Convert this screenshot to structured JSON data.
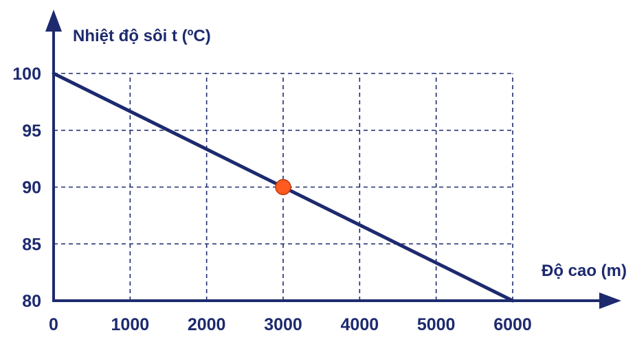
{
  "chart_data": {
    "type": "line",
    "xlabel": "Độ cao (m)",
    "ylabel": "Nhiệt độ sôi t (ºC)",
    "x_ticks": [
      0,
      1000,
      2000,
      3000,
      4000,
      5000,
      6000
    ],
    "y_ticks": [
      80,
      85,
      90,
      95,
      100
    ],
    "xlim": [
      0,
      6000
    ],
    "ylim": [
      80,
      100
    ],
    "grid": true,
    "series": [
      {
        "x": [
          0,
          6000
        ],
        "y": [
          100,
          80
        ]
      }
    ],
    "highlight_point": {
      "x": 3000,
      "y": 90
    },
    "colors": {
      "axis": "#1d2a6e",
      "line": "#1d2a6e",
      "grid": "#1d2a6e",
      "point": "#ff5a1f"
    }
  }
}
